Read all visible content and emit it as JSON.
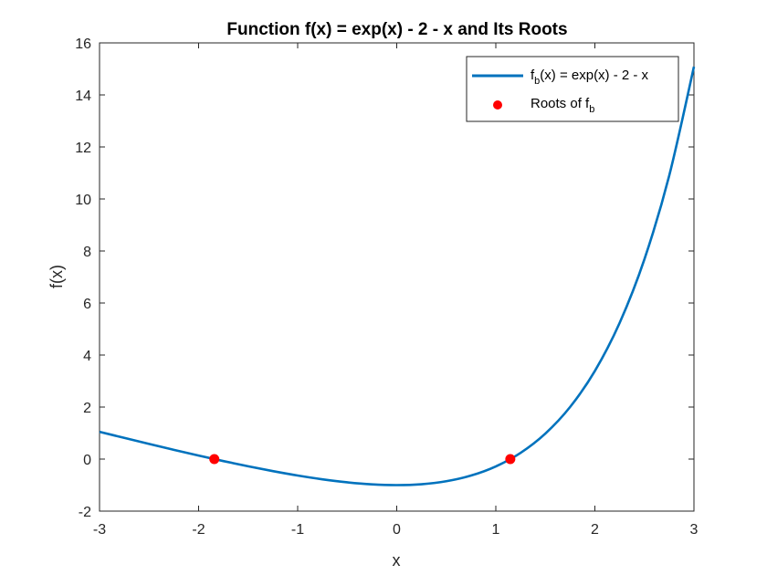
{
  "chart_data": {
    "type": "line",
    "title": "Function f(x) = exp(x) - 2 - x and Its Roots",
    "xlabel": "x",
    "ylabel": "f(x)",
    "xlim": [
      -3,
      3
    ],
    "ylim": [
      -2,
      16
    ],
    "xticks": [
      "-3",
      "-2",
      "-1",
      "0",
      "1",
      "2",
      "3"
    ],
    "yticks": [
      "-2",
      "0",
      "2",
      "4",
      "6",
      "8",
      "10",
      "12",
      "14",
      "16"
    ],
    "grid": false,
    "legend_position": "top-right",
    "series": [
      {
        "name_base": "f",
        "name_sub": "b",
        "name_rest": "(x) = exp(x) - 2 - x",
        "kind": "line",
        "color": "#0072BD",
        "x": [
          -3,
          -2.75,
          -2.5,
          -2.25,
          -2,
          -1.75,
          -1.5,
          -1.25,
          -1,
          -0.75,
          -0.5,
          -0.25,
          0,
          0.25,
          0.5,
          0.75,
          1,
          1.25,
          1.5,
          1.75,
          2,
          2.25,
          2.5,
          2.75,
          3
        ],
        "y": [
          1.0498,
          0.8139,
          0.5821,
          0.3554,
          0.1353,
          -0.0762,
          -0.2769,
          -0.4635,
          -0.6321,
          -0.7776,
          -0.8935,
          -0.9712,
          -1.0,
          -0.966,
          -0.8513,
          -0.633,
          -0.2817,
          0.2403,
          0.9817,
          2.0046,
          3.3891,
          5.2377,
          7.6825,
          10.8927,
          15.0855
        ]
      },
      {
        "name_base": "Roots of f",
        "name_sub": "b",
        "kind": "scatter",
        "color": "#FF0000",
        "x": [
          -1.8414,
          1.1462
        ],
        "y": [
          0,
          0
        ]
      }
    ]
  }
}
